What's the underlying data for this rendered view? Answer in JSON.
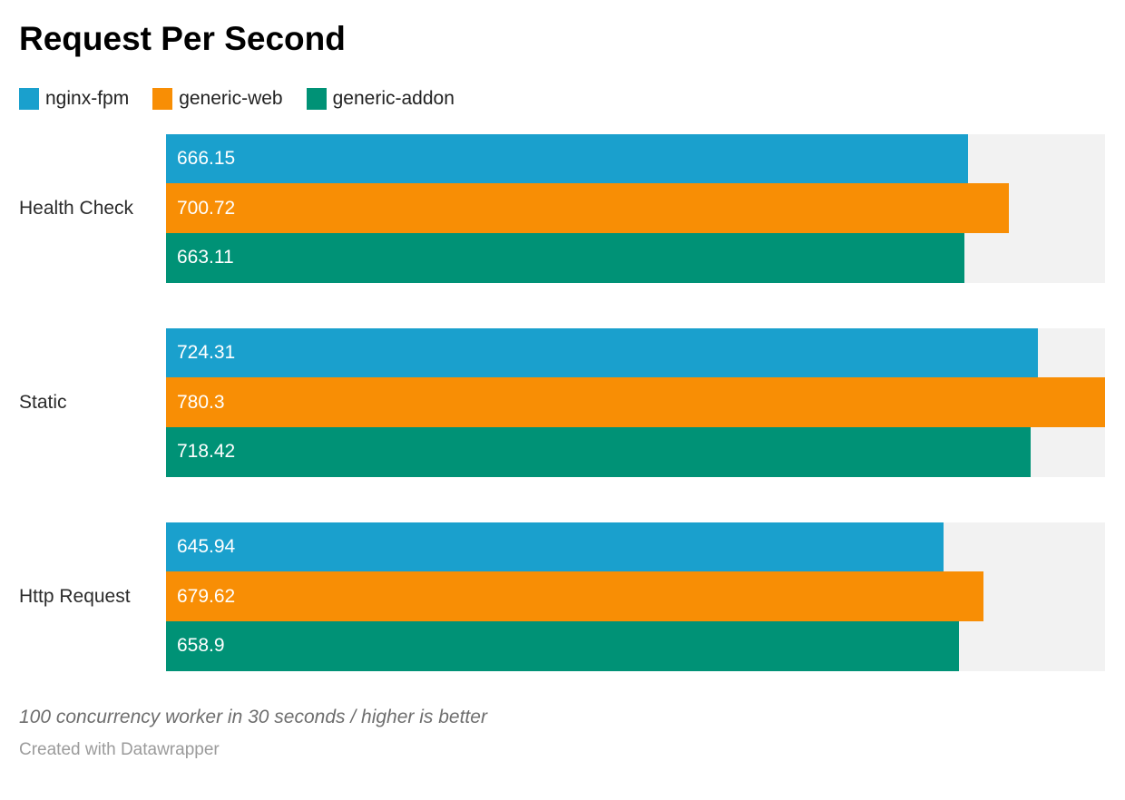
{
  "title": "Request Per Second",
  "chart_data": {
    "type": "bar",
    "orientation": "horizontal",
    "title": "Request Per Second",
    "categories": [
      "Health Check",
      "Static",
      "Http Request"
    ],
    "series": [
      {
        "name": "nginx-fpm",
        "color": "#1aa0cd",
        "values": [
          666.15,
          724.31,
          645.94
        ]
      },
      {
        "name": "generic-web",
        "color": "#f88e05",
        "values": [
          700.72,
          780.3,
          679.62
        ]
      },
      {
        "name": "generic-addon",
        "color": "#009276",
        "values": [
          663.11,
          718.42,
          658.9
        ]
      }
    ],
    "xlim": [
      0,
      780.3
    ],
    "value_labels": "inside-start, white",
    "track_color": "#f2f2f2",
    "legend_position": "top-left",
    "grid": false,
    "axis_ticks": "none"
  },
  "footer": {
    "note": "100 concurrency worker in 30 seconds / higher is better",
    "credit": "Created with Datawrapper"
  }
}
